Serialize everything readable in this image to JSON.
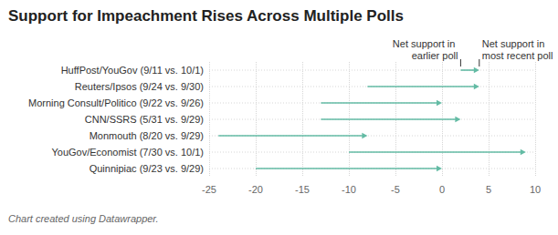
{
  "chart_data": {
    "type": "arrow",
    "orientation": "horizontal",
    "title": "Support for Impeachment Rises Across Multiple Polls",
    "caption": "Chart created using Datawrapper.",
    "categories": [
      "HuffPost/YouGov (9/11 vs. 10/1)",
      "Reuters/Ipsos (9/24 vs. 9/30)",
      "Morning Consult/Politico (9/22 vs. 9/26)",
      "CNN/SSRS (5/31 vs. 9/29)",
      "Monmouth (8/20 vs. 9/29)",
      "YouGov/Economist (7/30 vs. 10/1)",
      "Quinnipiac (9/23 vs. 9/29)"
    ],
    "series": [
      {
        "name": "Net support in earlier poll",
        "values": [
          2,
          -8,
          -13,
          -13,
          -24,
          -10,
          -20
        ]
      },
      {
        "name": "Net support in most recent poll",
        "values": [
          4,
          4,
          0,
          2,
          -8,
          9,
          0
        ]
      }
    ],
    "color": "#63bba4",
    "xlim": [
      -25,
      10
    ],
    "xticks": [
      -25,
      -20,
      -15,
      -10,
      -5,
      0,
      5,
      10
    ],
    "grid": true
  }
}
